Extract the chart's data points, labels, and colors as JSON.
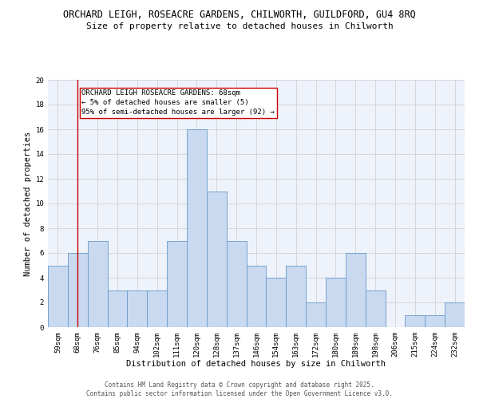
{
  "title_line1": "ORCHARD LEIGH, ROSEACRE GARDENS, CHILWORTH, GUILDFORD, GU4 8RQ",
  "title_line2": "Size of property relative to detached houses in Chilworth",
  "xlabel": "Distribution of detached houses by size in Chilworth",
  "ylabel": "Number of detached properties",
  "categories": [
    "59sqm",
    "68sqm",
    "76sqm",
    "85sqm",
    "94sqm",
    "102sqm",
    "111sqm",
    "120sqm",
    "128sqm",
    "137sqm",
    "146sqm",
    "154sqm",
    "163sqm",
    "172sqm",
    "180sqm",
    "189sqm",
    "198sqm",
    "206sqm",
    "215sqm",
    "224sqm",
    "232sqm"
  ],
  "values": [
    5,
    6,
    7,
    3,
    3,
    3,
    7,
    16,
    11,
    7,
    5,
    4,
    5,
    2,
    4,
    6,
    3,
    0,
    1,
    1,
    2
  ],
  "bar_color": "#c9d9f0",
  "bar_edge_color": "#6699cc",
  "grid_color": "#cccccc",
  "bg_color": "#eef2fa",
  "vline_x": 1,
  "vline_color": "#cc0000",
  "annotation_text": "ORCHARD LEIGH ROSEACRE GARDENS: 68sqm\n← 5% of detached houses are smaller (5)\n95% of semi-detached houses are larger (92) →",
  "annotation_box_color": "#cc0000",
  "ylim": [
    0,
    20
  ],
  "yticks": [
    0,
    2,
    4,
    6,
    8,
    10,
    12,
    14,
    16,
    18,
    20
  ],
  "footer_text": "Contains HM Land Registry data © Crown copyright and database right 2025.\nContains public sector information licensed under the Open Government Licence v3.0.",
  "title_fontsize": 8.5,
  "subtitle_fontsize": 8,
  "axis_label_fontsize": 7.5,
  "tick_fontsize": 6.5,
  "annotation_fontsize": 6.5,
  "footer_fontsize": 5.5
}
